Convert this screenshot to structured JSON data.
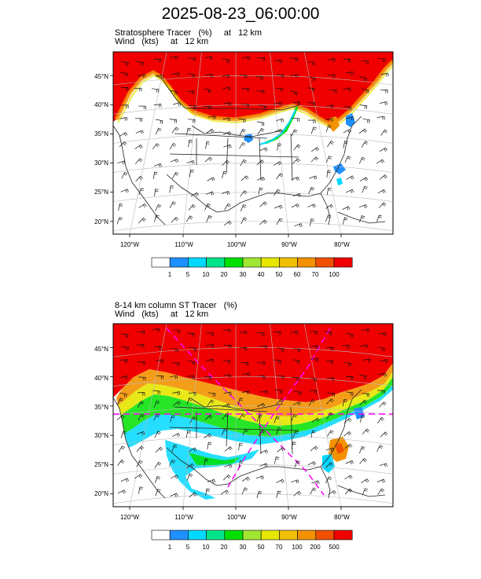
{
  "title": "2025-08-23_06:00:00",
  "panels": [
    {
      "title_line1": "Stratosphere Tracer   (%)     at   12 km",
      "title_line2": "Wind   (kts)     at   12 km",
      "lat_labels": [
        "45°N",
        "40°N",
        "35°N",
        "30°N",
        "25°N",
        "20°N"
      ],
      "lon_labels": [
        "120°W",
        "110°W",
        "100°W",
        "90°W",
        "80°W"
      ],
      "colorbar_labels": [
        "1",
        "5",
        "10",
        "20",
        "30",
        "40",
        "50",
        "60",
        "70",
        "100"
      ],
      "colorbar_colors": [
        "#ffffff",
        "#1e90ff",
        "#00d8ff",
        "#00e58a",
        "#00e000",
        "#a0e632",
        "#e6e600",
        "#f0c000",
        "#f39200",
        "#f05000",
        "#f00000"
      ]
    },
    {
      "title_line1": "8-14 km column ST Tracer   (%)",
      "title_line2": "Wind   (kts)     at   12 km",
      "lat_labels": [
        "45°N",
        "40°N",
        "35°N",
        "30°N",
        "25°N",
        "20°N"
      ],
      "lon_labels": [
        "120°W",
        "110°W",
        "100°W",
        "90°W",
        "80°W"
      ],
      "colorbar_labels": [
        "1",
        "5",
        "10",
        "20",
        "30",
        "50",
        "70",
        "100",
        "200",
        "500"
      ],
      "colorbar_colors": [
        "#ffffff",
        "#1e90ff",
        "#00d8ff",
        "#00e58a",
        "#00e000",
        "#a0e632",
        "#e6e600",
        "#f0c000",
        "#f39200",
        "#f05000",
        "#f00000"
      ]
    }
  ]
}
